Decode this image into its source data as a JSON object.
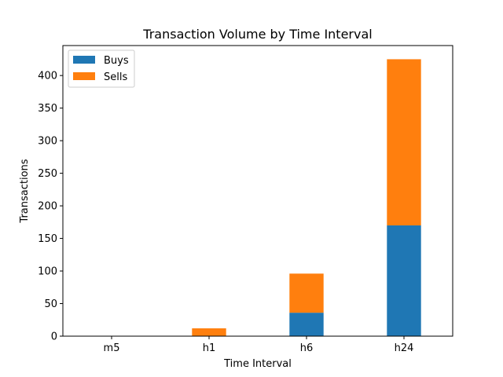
{
  "chart_data": {
    "type": "bar",
    "stacked": true,
    "title": "Transaction Volume by Time Interval",
    "xlabel": "Time Interval",
    "ylabel": "Transactions",
    "categories": [
      "m5",
      "h1",
      "h6",
      "h24"
    ],
    "series": [
      {
        "name": "Buys",
        "color": "#1f77b4",
        "values": [
          0,
          0,
          36,
          170
        ]
      },
      {
        "name": "Sells",
        "color": "#ff7f0e",
        "values": [
          0,
          12,
          60,
          255
        ]
      }
    ],
    "ylim": [
      0,
      446
    ],
    "yticks": [
      0,
      50,
      100,
      150,
      200,
      250,
      300,
      350,
      400
    ],
    "grid": false,
    "legend": "top-left"
  }
}
